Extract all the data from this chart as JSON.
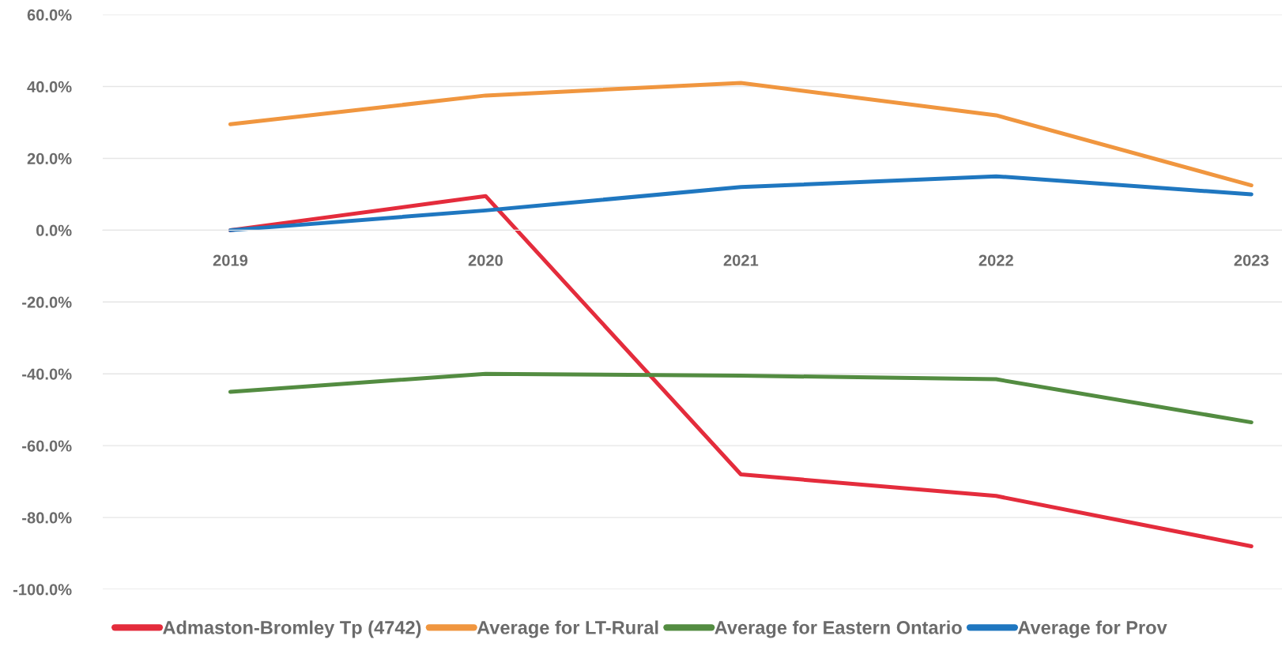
{
  "chart_data": {
    "type": "line",
    "categories": [
      "2019",
      "2020",
      "2021",
      "2022",
      "2023"
    ],
    "series": [
      {
        "name": "Admaston-Bromley Tp (4742)",
        "color": "#e42c3c",
        "values": [
          0,
          9.5,
          -68,
          -74,
          -88
        ]
      },
      {
        "name": "Average for LT-Rural",
        "color": "#f0963f",
        "values": [
          29.5,
          37.5,
          41,
          32,
          12.5
        ]
      },
      {
        "name": "Average for Eastern Ontario",
        "color": "#538c41",
        "values": [
          -45,
          -40,
          -40.5,
          -41.5,
          -53.5
        ]
      },
      {
        "name": "Average for Prov",
        "color": "#1f77c0",
        "values": [
          0,
          5.5,
          12,
          15,
          10
        ]
      }
    ],
    "ylim": [
      -100,
      60
    ],
    "yticks": [
      {
        "value": -100,
        "label": "-100.0%"
      },
      {
        "value": -80,
        "label": "-80.0%"
      },
      {
        "value": -60,
        "label": "-60.0%"
      },
      {
        "value": -40,
        "label": "-40.0%"
      },
      {
        "value": -20,
        "label": "-20.0%"
      },
      {
        "value": 0,
        "label": "0.0%"
      },
      {
        "value": 20,
        "label": "20.0%"
      },
      {
        "value": 40,
        "label": "40.0%"
      },
      {
        "value": 60,
        "label": "60.0%"
      }
    ],
    "grid": "y",
    "legend": "bottom"
  }
}
